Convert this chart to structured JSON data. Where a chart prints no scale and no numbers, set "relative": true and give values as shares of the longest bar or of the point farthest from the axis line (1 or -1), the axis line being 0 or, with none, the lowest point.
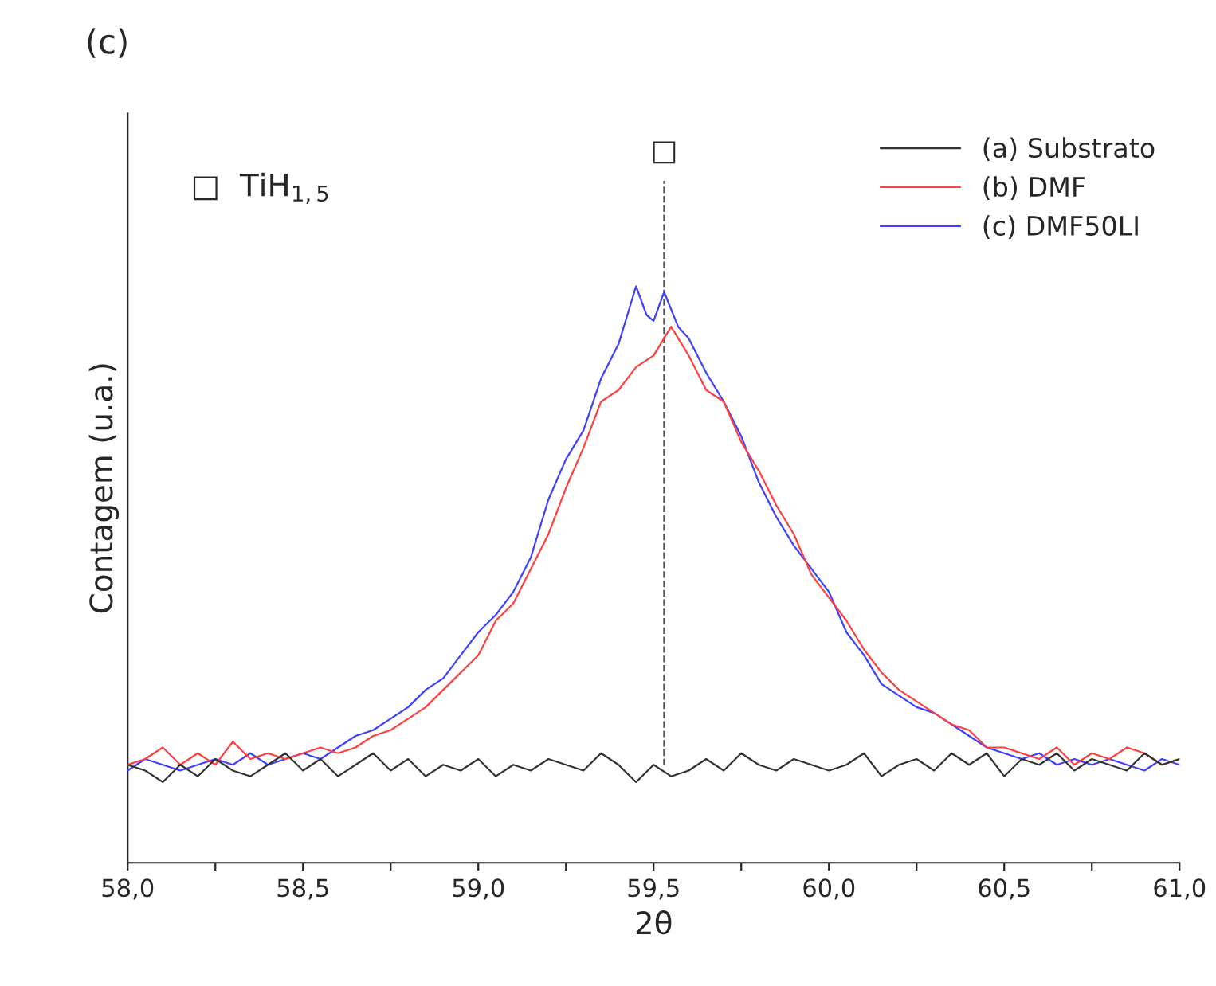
{
  "chart_data": {
    "type": "line",
    "title": "(c)",
    "xlabel": "2θ",
    "ylabel": "Contagem (u.a.)",
    "relative": true,
    "annotations": [
      "□  TiH$_{1,5}$"
    ],
    "xlim": [
      58,
      61
    ],
    "xticks": [
      {
        "value": 58,
        "label": "58,0"
      },
      {
        "value": 58.25,
        "label": null
      },
      {
        "value": 58.5,
        "label": "58,5"
      },
      {
        "value": 58.75,
        "label": null
      },
      {
        "value": 59,
        "label": "59,0"
      },
      {
        "value": 59.25,
        "label": null
      },
      {
        "value": 59.5,
        "label": "59,5"
      },
      {
        "value": 59.75,
        "label": null
      },
      {
        "value": 60,
        "label": "60,0"
      },
      {
        "value": 60.25,
        "label": null
      },
      {
        "value": 60.5,
        "label": "60,5"
      },
      {
        "value": 60.75,
        "label": null
      },
      {
        "value": 61,
        "label": "61,0"
      }
    ],
    "tick_labels": "x",
    "grid": false,
    "legend": "top right",
    "ref_lines": [
      {
        "axis": "x",
        "value": 59.53,
        "label": "□",
        "color": "#555555",
        "line_style": "dashed"
      }
    ],
    "series": [
      {
        "name": "(a) Substrato",
        "color": "#333333",
        "x": [
          58.0,
          58.05,
          58.1,
          58.15,
          58.2,
          58.25,
          58.3,
          58.35,
          58.4,
          58.45,
          58.5,
          58.55,
          58.6,
          58.65,
          58.7,
          58.75,
          58.8,
          58.85,
          58.9,
          58.95,
          59.0,
          59.05,
          59.1,
          59.15,
          59.2,
          59.25,
          59.3,
          59.35,
          59.4,
          59.45,
          59.5,
          59.55,
          59.6,
          59.65,
          59.7,
          59.75,
          59.8,
          59.85,
          59.9,
          59.95,
          60.0,
          60.05,
          60.1,
          60.15,
          60.2,
          60.25,
          60.3,
          60.35,
          60.4,
          60.45,
          60.5,
          60.55,
          60.6,
          60.65,
          60.7,
          60.75,
          60.8,
          60.85,
          60.9,
          60.95,
          61.0
        ],
        "values": [
          0.17,
          0.16,
          0.14,
          0.17,
          0.15,
          0.18,
          0.16,
          0.15,
          0.17,
          0.19,
          0.16,
          0.18,
          0.15,
          0.17,
          0.19,
          0.16,
          0.18,
          0.15,
          0.17,
          0.16,
          0.18,
          0.15,
          0.17,
          0.16,
          0.18,
          0.17,
          0.16,
          0.19,
          0.17,
          0.14,
          0.17,
          0.15,
          0.16,
          0.18,
          0.16,
          0.19,
          0.17,
          0.16,
          0.18,
          0.17,
          0.16,
          0.17,
          0.19,
          0.15,
          0.17,
          0.18,
          0.16,
          0.19,
          0.17,
          0.19,
          0.15,
          0.18,
          0.17,
          0.19,
          0.16,
          0.18,
          0.17,
          0.16,
          0.19,
          0.17,
          0.18
        ]
      },
      {
        "name": "(b) DMF",
        "color": "#ff4040",
        "x": [
          58.0,
          58.05,
          58.1,
          58.15,
          58.2,
          58.25,
          58.3,
          58.35,
          58.4,
          58.45,
          58.5,
          58.55,
          58.6,
          58.65,
          58.7,
          58.75,
          58.8,
          58.85,
          58.9,
          58.95,
          59.0,
          59.05,
          59.1,
          59.15,
          59.2,
          59.25,
          59.3,
          59.35,
          59.4,
          59.45,
          59.5,
          59.55,
          59.6,
          59.65,
          59.7,
          59.75,
          59.8,
          59.85,
          59.9,
          59.95,
          60.0,
          60.05,
          60.1,
          60.15,
          60.2,
          60.25,
          60.3,
          60.35,
          60.4,
          60.45,
          60.5,
          60.55,
          60.6,
          60.65,
          60.7,
          60.75,
          60.8,
          60.85,
          60.9,
          60.95,
          61.0
        ],
        "values": [
          0.17,
          0.18,
          0.2,
          0.17,
          0.19,
          0.17,
          0.21,
          0.18,
          0.19,
          0.18,
          0.19,
          0.2,
          0.19,
          0.2,
          0.22,
          0.23,
          0.25,
          0.27,
          0.3,
          0.33,
          0.36,
          0.42,
          0.45,
          0.51,
          0.57,
          0.65,
          0.72,
          0.8,
          0.82,
          0.86,
          0.88,
          0.93,
          0.88,
          0.82,
          0.8,
          0.73,
          0.68,
          0.62,
          0.57,
          0.5,
          0.46,
          0.42,
          0.37,
          0.33,
          0.3,
          0.28,
          0.26,
          0.24,
          0.23,
          0.2,
          0.2,
          0.19,
          0.18,
          0.2,
          0.17,
          0.19,
          0.18,
          0.2,
          0.19,
          0.17,
          0.18
        ]
      },
      {
        "name": "(c) DMF50LI",
        "color": "#4040ff",
        "x": [
          58.0,
          58.05,
          58.1,
          58.15,
          58.2,
          58.25,
          58.3,
          58.35,
          58.4,
          58.45,
          58.5,
          58.55,
          58.6,
          58.65,
          58.7,
          58.75,
          58.8,
          58.85,
          58.9,
          58.95,
          59.0,
          59.05,
          59.1,
          59.15,
          59.2,
          59.25,
          59.3,
          59.35,
          59.4,
          59.45,
          59.48,
          59.5,
          59.53,
          59.57,
          59.6,
          59.65,
          59.7,
          59.75,
          59.8,
          59.85,
          59.9,
          59.95,
          60.0,
          60.05,
          60.1,
          60.15,
          60.2,
          60.25,
          60.3,
          60.35,
          60.4,
          60.45,
          60.5,
          60.55,
          60.6,
          60.65,
          60.7,
          60.75,
          60.8,
          60.85,
          60.9,
          60.95,
          61.0
        ],
        "values": [
          0.16,
          0.18,
          0.17,
          0.16,
          0.17,
          0.18,
          0.17,
          0.19,
          0.17,
          0.18,
          0.19,
          0.18,
          0.2,
          0.22,
          0.23,
          0.25,
          0.27,
          0.3,
          0.32,
          0.36,
          0.4,
          0.43,
          0.47,
          0.53,
          0.63,
          0.7,
          0.75,
          0.84,
          0.9,
          1.0,
          0.95,
          0.94,
          0.99,
          0.93,
          0.91,
          0.85,
          0.8,
          0.74,
          0.66,
          0.6,
          0.55,
          0.51,
          0.47,
          0.4,
          0.36,
          0.31,
          0.29,
          0.27,
          0.26,
          0.24,
          0.22,
          0.2,
          0.19,
          0.18,
          0.19,
          0.17,
          0.18,
          0.17,
          0.18,
          0.17,
          0.16,
          0.18,
          0.17
        ]
      }
    ]
  }
}
